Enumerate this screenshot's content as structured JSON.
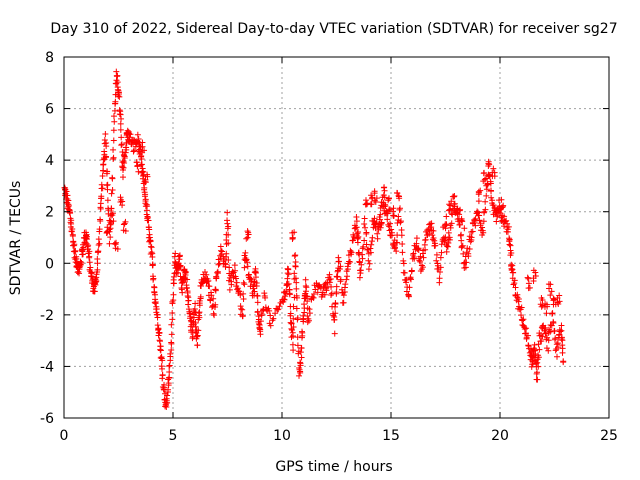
{
  "chart_data": {
    "type": "scatter",
    "title": "Day 310 of 2022, Sidereal Day-to-day VTEC variation (SDTVAR) for receiver sg27",
    "xlabel": "GPS time / hours",
    "ylabel": "SDTVAR / TECUs",
    "xlim": [
      0,
      25
    ],
    "ylim": [
      -6,
      8
    ],
    "xticks": [
      0,
      5,
      10,
      15,
      20,
      25
    ],
    "yticks": [
      -6,
      -4,
      -2,
      0,
      2,
      4,
      6,
      8
    ],
    "grid": true,
    "marker": "plus",
    "color": "#ff0000",
    "series": [
      {
        "name": "SDTVAR",
        "trace": [
          [
            0.0,
            2.9
          ],
          [
            0.1,
            2.6
          ],
          [
            0.2,
            2.2
          ],
          [
            0.3,
            1.8
          ],
          [
            0.4,
            1.0
          ],
          [
            0.5,
            0.3
          ],
          [
            0.6,
            0.0
          ],
          [
            0.7,
            -0.3
          ],
          [
            0.8,
            0.2
          ],
          [
            0.9,
            0.8
          ],
          [
            1.0,
            1.2
          ],
          [
            1.1,
            0.6
          ],
          [
            1.2,
            -0.2
          ],
          [
            1.3,
            -0.8
          ],
          [
            1.4,
            -1.0
          ],
          [
            1.5,
            -0.4
          ],
          [
            1.6,
            0.8
          ],
          [
            1.7,
            2.5
          ],
          [
            1.8,
            3.6
          ],
          [
            1.9,
            4.8
          ],
          [
            2.0,
            3.0
          ],
          [
            2.1,
            1.0
          ],
          [
            2.2,
            2.5
          ],
          [
            2.3,
            5.5
          ],
          [
            2.4,
            7.2
          ],
          [
            2.5,
            6.8
          ],
          [
            2.6,
            5.5
          ],
          [
            2.7,
            3.5
          ],
          [
            2.8,
            4.3
          ],
          [
            2.9,
            5.0
          ],
          [
            3.0,
            4.9
          ],
          [
            3.2,
            4.5
          ],
          [
            3.4,
            4.8
          ],
          [
            3.5,
            4.2
          ],
          [
            3.6,
            3.5
          ],
          [
            3.7,
            2.8
          ],
          [
            3.8,
            2.0
          ],
          [
            3.9,
            1.2
          ],
          [
            4.0,
            0.5
          ],
          [
            4.1,
            -0.5
          ],
          [
            4.2,
            -1.5
          ],
          [
            4.3,
            -2.2
          ],
          [
            4.4,
            -3.0
          ],
          [
            4.5,
            -4.0
          ],
          [
            4.6,
            -5.0
          ],
          [
            4.7,
            -5.6
          ],
          [
            4.8,
            -4.5
          ],
          [
            4.9,
            -3.5
          ],
          [
            5.0,
            -1.2
          ],
          [
            5.1,
            0.3
          ],
          [
            5.2,
            -0.5
          ],
          [
            5.3,
            0.2
          ],
          [
            5.4,
            -1.0
          ],
          [
            5.5,
            -0.3
          ],
          [
            5.6,
            -0.5
          ],
          [
            5.7,
            -1.5
          ],
          [
            5.8,
            -2.2
          ],
          [
            5.9,
            -2.8
          ],
          [
            6.0,
            -1.5
          ],
          [
            6.1,
            -3.2
          ],
          [
            6.2,
            -2.0
          ],
          [
            6.3,
            -0.8
          ],
          [
            6.5,
            -0.5
          ],
          [
            6.7,
            -1.2
          ],
          [
            6.9,
            -1.8
          ],
          [
            7.0,
            -0.5
          ],
          [
            7.2,
            0.5
          ],
          [
            7.4,
            -0.2
          ],
          [
            7.5,
            1.8
          ],
          [
            7.6,
            -0.8
          ],
          [
            7.8,
            -0.2
          ],
          [
            8.0,
            -1.0
          ],
          [
            8.2,
            -2.2
          ],
          [
            8.3,
            0.5
          ],
          [
            8.5,
            -0.5
          ],
          [
            8.7,
            -1.2
          ],
          [
            8.8,
            -0.3
          ],
          [
            8.9,
            -2.0
          ],
          [
            9.0,
            -2.8
          ],
          [
            9.2,
            -1.2
          ],
          [
            9.5,
            -2.4
          ],
          [
            10.0,
            -1.5
          ],
          [
            10.2,
            -1.0
          ],
          [
            10.3,
            -0.3
          ],
          [
            10.4,
            -2.0
          ],
          [
            10.5,
            -3.2
          ],
          [
            10.6,
            0.5
          ],
          [
            10.7,
            -1.8
          ],
          [
            10.8,
            -4.5
          ],
          [
            10.9,
            -3.2
          ],
          [
            11.0,
            -1.8
          ],
          [
            11.1,
            -0.8
          ],
          [
            11.2,
            -2.2
          ],
          [
            11.5,
            -0.8
          ],
          [
            11.8,
            -1.2
          ],
          [
            12.0,
            -1.0
          ],
          [
            12.2,
            -0.5
          ],
          [
            12.4,
            -2.5
          ],
          [
            12.5,
            -0.8
          ],
          [
            12.6,
            0.3
          ],
          [
            12.8,
            -1.6
          ],
          [
            13.0,
            -0.2
          ],
          [
            13.2,
            0.6
          ],
          [
            13.4,
            1.6
          ],
          [
            13.5,
            0.8
          ],
          [
            13.6,
            -0.5
          ],
          [
            13.8,
            1.5
          ],
          [
            14.0,
            0.0
          ],
          [
            14.2,
            1.8
          ],
          [
            14.4,
            1.2
          ],
          [
            14.6,
            2.4
          ],
          [
            14.8,
            2.0
          ],
          [
            15.0,
            1.2
          ],
          [
            15.2,
            0.5
          ],
          [
            15.4,
            2.0
          ],
          [
            15.6,
            -0.2
          ],
          [
            15.8,
            -1.2
          ],
          [
            16.0,
            0.2
          ],
          [
            16.2,
            0.8
          ],
          [
            16.4,
            -0.2
          ],
          [
            16.6,
            1.0
          ],
          [
            16.8,
            1.5
          ],
          [
            17.0,
            0.8
          ],
          [
            17.2,
            -0.6
          ],
          [
            17.4,
            1.2
          ],
          [
            17.6,
            0.5
          ],
          [
            17.8,
            1.8
          ],
          [
            18.0,
            2.2
          ],
          [
            18.2,
            1.0
          ],
          [
            18.4,
            -0.2
          ],
          [
            18.6,
            0.8
          ],
          [
            18.8,
            1.5
          ],
          [
            19.0,
            2.0
          ],
          [
            19.2,
            1.2
          ],
          [
            19.4,
            3.0
          ],
          [
            19.5,
            3.8
          ],
          [
            19.6,
            2.4
          ],
          [
            19.8,
            1.8
          ],
          [
            20.0,
            2.0
          ],
          [
            20.2,
            1.6
          ],
          [
            20.4,
            1.2
          ],
          [
            20.5,
            0.2
          ],
          [
            20.6,
            -0.6
          ],
          [
            20.8,
            -1.5
          ],
          [
            21.0,
            -2.0
          ],
          [
            21.2,
            -2.8
          ],
          [
            21.4,
            -3.5
          ],
          [
            21.5,
            -4.0
          ],
          [
            21.6,
            -3.2
          ],
          [
            21.7,
            -4.4
          ],
          [
            21.8,
            -3.0
          ],
          [
            22.0,
            -2.5
          ],
          [
            22.2,
            -3.2
          ],
          [
            22.4,
            -2.0
          ],
          [
            22.6,
            -3.5
          ],
          [
            22.8,
            -2.5
          ],
          [
            22.9,
            -3.8
          ]
        ],
        "secondary_trace": [
          [
            2.0,
            1.2
          ],
          [
            2.2,
            1.8
          ],
          [
            2.4,
            0.8
          ],
          [
            2.6,
            2.5
          ],
          [
            2.8,
            1.5
          ],
          [
            3.4,
            3.8
          ],
          [
            3.6,
            4.5
          ],
          [
            3.8,
            3.2
          ],
          [
            8.4,
            1.0
          ],
          [
            10.5,
            1.0
          ],
          [
            13.9,
            2.2
          ],
          [
            14.1,
            2.5
          ],
          [
            14.3,
            2.6
          ],
          [
            14.5,
            1.6
          ],
          [
            14.7,
            2.8
          ],
          [
            14.9,
            2.3
          ],
          [
            15.1,
            1.9
          ],
          [
            15.3,
            2.6
          ],
          [
            17.5,
            1.6
          ],
          [
            17.7,
            2.2
          ],
          [
            17.9,
            2.5
          ],
          [
            18.1,
            1.9
          ],
          [
            18.3,
            1.5
          ],
          [
            19.1,
            2.6
          ],
          [
            19.3,
            3.3
          ],
          [
            19.7,
            3.6
          ],
          [
            19.9,
            2.2
          ],
          [
            20.1,
            2.3
          ],
          [
            21.3,
            -0.8
          ],
          [
            21.6,
            -0.5
          ],
          [
            21.9,
            -1.5
          ],
          [
            22.1,
            -1.8
          ],
          [
            22.3,
            -1.0
          ],
          [
            22.5,
            -1.6
          ],
          [
            22.7,
            -1.4
          ]
        ]
      }
    ]
  }
}
